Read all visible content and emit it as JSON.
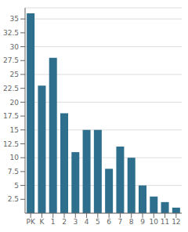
{
  "chart_data": {
    "type": "bar",
    "categories": [
      "PK",
      "K",
      "1",
      "2",
      "3",
      "4",
      "5",
      "6",
      "7",
      "8",
      "9",
      "10",
      "11",
      "12"
    ],
    "values": [
      36,
      23,
      28,
      18,
      11,
      15,
      15,
      8,
      12,
      10,
      5,
      3,
      2,
      1
    ],
    "color": "#2e6f8e",
    "ylim": [
      0,
      37
    ],
    "yticks": [
      2.5,
      5.0,
      7.5,
      10.0,
      12.5,
      15.0,
      17.5,
      20.0,
      22.5,
      25.0,
      27.5,
      30.0,
      32.5,
      35.0
    ],
    "grid": true
  }
}
